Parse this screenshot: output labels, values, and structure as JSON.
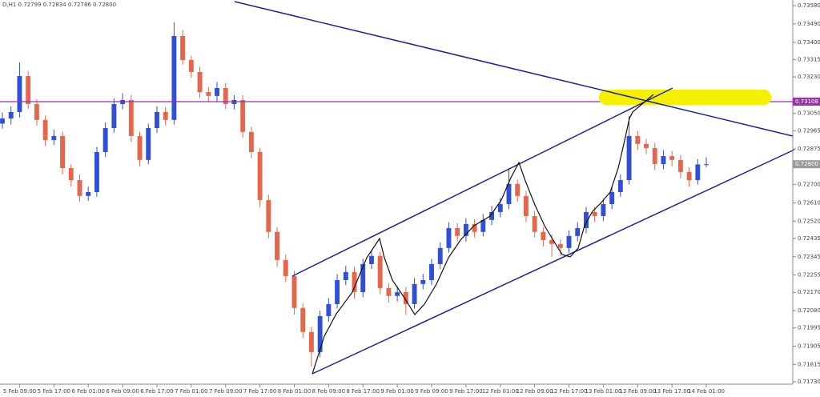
{
  "chart_data": {
    "type": "candlestick",
    "title": "D,H1  0.72799 0.72834 0.72786 0.72800",
    "up_color": "#2f4fd8",
    "down_color": "#e4674d",
    "xlim": [
      -0.28,
      92.07
    ],
    "ylim": [
      0.71718,
      0.73608
    ],
    "yticks": [
      {
        "value": 0.7358,
        "label": "0.73580"
      },
      {
        "value": 0.7349,
        "label": "0.73490"
      },
      {
        "value": 0.734,
        "label": "0.73400"
      },
      0.73315,
      {
        "value": 0.7323,
        "label": "0.73230"
      },
      {
        "value": 0.7305,
        "label": "0.73050"
      },
      0.72965,
      0.72875,
      {
        "value": 0.727,
        "label": "0.72700"
      },
      {
        "value": 0.7261,
        "label": "0.72610"
      },
      {
        "value": 0.7252,
        "label": "0.72520"
      },
      0.72435,
      0.72345,
      0.72255,
      {
        "value": 0.7217,
        "label": "0.72170"
      },
      {
        "value": 0.7208,
        "label": "0.72080"
      },
      0.71995,
      0.71905,
      0.71815,
      {
        "value": 0.7173,
        "label": "0.71730"
      }
    ],
    "xticks": [
      {
        "value": 2,
        "label": "5 Feb 09:00"
      },
      {
        "value": 6,
        "label": "5 Feb 17:00"
      },
      {
        "value": 10,
        "label": "6 Feb 01:00"
      },
      {
        "value": 14,
        "label": "6 Feb 09:00"
      },
      {
        "value": 18,
        "label": "6 Feb 17:00"
      },
      {
        "value": 22,
        "label": "7 Feb 01:00"
      },
      {
        "value": 26,
        "label": "7 Feb 09:00"
      },
      {
        "value": 30,
        "label": "7 Feb 17:00"
      },
      {
        "value": 34,
        "label": "8 Feb 01:00"
      },
      {
        "value": 38,
        "label": "8 Feb 09:00"
      },
      {
        "value": 42,
        "label": "8 Feb 17:00"
      },
      {
        "value": 46,
        "label": "9 Feb 01:00"
      },
      {
        "value": 50,
        "label": "9 Feb 09:00"
      },
      {
        "value": 54,
        "label": "9 Feb 17:00"
      },
      {
        "value": 58,
        "label": "12 Feb 01:00"
      },
      {
        "value": 62,
        "label": "12 Feb 09:00"
      },
      {
        "value": 66,
        "label": "12 Feb 17:00"
      },
      {
        "value": 70,
        "label": "13 Feb 01:00"
      },
      {
        "value": 74,
        "label": "13 Feb 09:00"
      },
      {
        "value": 78,
        "label": "13 Feb 17:00"
      },
      {
        "value": 82,
        "label": "14 Feb 01:00"
      }
    ],
    "hline": {
      "value": 0.73108,
      "color": "#9b2fae"
    },
    "price_line": {
      "value": 0.728,
      "label": "0.72800"
    },
    "open": [
      0.73,
      0.73025,
      0.73057,
      0.73234,
      0.73096,
      0.73018,
      0.72919,
      0.72939,
      0.72781,
      0.72722,
      0.72644,
      0.72663,
      0.7286,
      0.72978,
      0.73096,
      0.73116,
      0.72939,
      0.72821,
      0.72978,
      0.73057,
      0.73018,
      0.73431,
      0.73313,
      0.73254,
      0.73155,
      0.73136,
      0.73175,
      0.73096,
      0.73116,
      0.72959,
      0.7286,
      0.72624,
      0.72467,
      0.72329,
      0.7225,
      0.72093,
      0.71975,
      0.71876,
      0.72053,
      0.72112,
      0.7223,
      0.7227,
      0.72171,
      0.72309,
      0.72349,
      0.72191,
      0.72152,
      0.72171,
      0.72112,
      0.72211,
      0.7223,
      0.72309,
      0.72388,
      0.72486,
      0.72447,
      0.72506,
      0.72467,
      0.72526,
      0.72565,
      0.72604,
      0.72703,
      0.72644,
      0.72545,
      0.72467,
      0.72427,
      0.72408,
      0.72388,
      0.72447,
      0.72486,
      0.72565,
      0.72545,
      0.72604,
      0.72663,
      0.72722,
      0.72939,
      0.729,
      0.7288,
      0.72801,
      0.7284,
      0.72821,
      0.72762,
      0.72722,
      0.72799
    ],
    "high": [
      0.73055,
      0.73085,
      0.73301,
      0.7326,
      0.7312,
      0.7304,
      0.7297,
      0.7296,
      0.728,
      0.7275,
      0.7269,
      0.72885,
      0.73005,
      0.73125,
      0.7315,
      0.7314,
      0.7296,
      0.73,
      0.73085,
      0.7308,
      0.73498,
      0.7346,
      0.73335,
      0.7328,
      0.7318,
      0.73205,
      0.732,
      0.7314,
      0.7314,
      0.72985,
      0.7288,
      0.7265,
      0.7249,
      0.72355,
      0.72275,
      0.72115,
      0.72,
      0.7208,
      0.7214,
      0.7226,
      0.723,
      0.72295,
      0.72335,
      0.7238,
      0.7237,
      0.72215,
      0.722,
      0.72195,
      0.7224,
      0.7226,
      0.72335,
      0.72415,
      0.72515,
      0.7251,
      0.72535,
      0.7253,
      0.72555,
      0.72595,
      0.72635,
      0.72781,
      0.72725,
      0.7267,
      0.7257,
      0.7249,
      0.72455,
      0.7243,
      0.72475,
      0.72515,
      0.7259,
      0.7259,
      0.7263,
      0.7269,
      0.7275,
      0.73037,
      0.72965,
      0.72925,
      0.72905,
      0.7287,
      0.72865,
      0.72845,
      0.72785,
      0.72825,
      0.72834
    ],
    "low": [
      0.72975,
      0.72995,
      0.7303,
      0.7307,
      0.7299,
      0.7289,
      0.72895,
      0.7275,
      0.7269,
      0.72615,
      0.7262,
      0.7264,
      0.72835,
      0.72955,
      0.7307,
      0.7291,
      0.7279,
      0.728,
      0.72955,
      0.7299,
      0.72995,
      0.7329,
      0.73225,
      0.73125,
      0.73105,
      0.7311,
      0.7307,
      0.7307,
      0.7293,
      0.7283,
      0.7259,
      0.72435,
      0.72295,
      0.7222,
      0.7206,
      0.71945,
      0.71805,
      0.7185,
      0.72025,
      0.7209,
      0.72205,
      0.7214,
      0.72145,
      0.72285,
      0.7216,
      0.7212,
      0.72125,
      0.7206,
      0.7209,
      0.72185,
      0.72205,
      0.72285,
      0.72365,
      0.7242,
      0.7242,
      0.7244,
      0.72445,
      0.725,
      0.7254,
      0.7258,
      0.72615,
      0.72515,
      0.7244,
      0.72395,
      0.72345,
      0.7235,
      0.72365,
      0.7242,
      0.7246,
      0.72515,
      0.7252,
      0.7258,
      0.7264,
      0.727,
      0.7287,
      0.7285,
      0.7277,
      0.72775,
      0.7279,
      0.7273,
      0.7269,
      0.727,
      0.72786
    ],
    "close": [
      0.73025,
      0.73057,
      0.73234,
      0.73096,
      0.73018,
      0.72919,
      0.72939,
      0.72781,
      0.72722,
      0.72644,
      0.72663,
      0.7286,
      0.72978,
      0.73096,
      0.73116,
      0.72939,
      0.72821,
      0.72978,
      0.73057,
      0.73018,
      0.73431,
      0.73313,
      0.73254,
      0.73155,
      0.73136,
      0.73175,
      0.73096,
      0.73116,
      0.72959,
      0.7286,
      0.72624,
      0.72467,
      0.72329,
      0.7225,
      0.72093,
      0.71975,
      0.71876,
      0.72053,
      0.72112,
      0.7223,
      0.7227,
      0.72171,
      0.72309,
      0.72349,
      0.72191,
      0.72152,
      0.72171,
      0.72112,
      0.72211,
      0.7223,
      0.72309,
      0.72388,
      0.72486,
      0.72447,
      0.72506,
      0.72467,
      0.72526,
      0.72565,
      0.72604,
      0.72703,
      0.72644,
      0.72545,
      0.72467,
      0.72427,
      0.72408,
      0.72388,
      0.72447,
      0.72486,
      0.72565,
      0.72545,
      0.72604,
      0.72663,
      0.72722,
      0.72939,
      0.729,
      0.7288,
      0.72801,
      0.7284,
      0.72821,
      0.72762,
      0.72722,
      0.72799,
      0.728
    ]
  }
}
